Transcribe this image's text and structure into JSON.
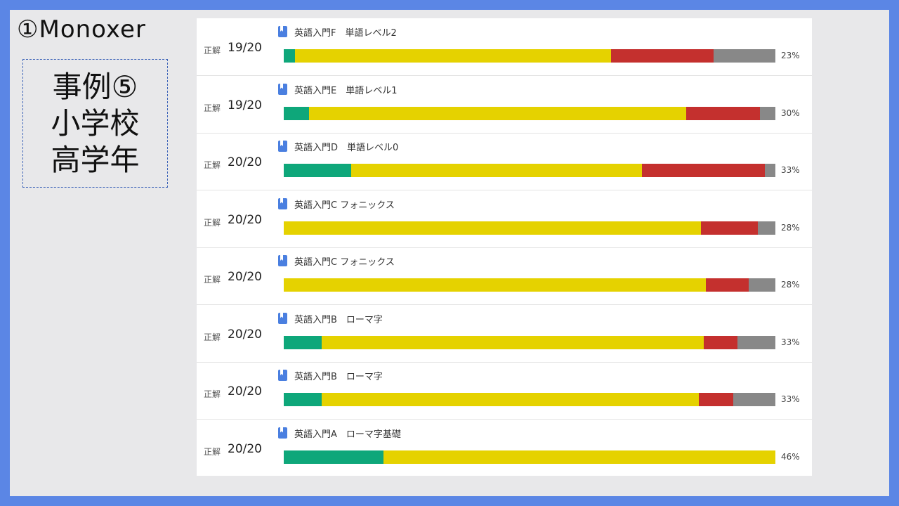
{
  "slide": {
    "title": "①Monoxer",
    "caption_lines": [
      "事例⑤",
      "小学校",
      "高学年"
    ]
  },
  "colors": {
    "frame": "#5b86e5",
    "correct_green": "#0ea77a",
    "yellow": "#e5d200",
    "red": "#c4302e",
    "gray": "#888888",
    "book_icon": "#4a7fe0"
  },
  "rows": [
    {
      "score_label": "正解",
      "score": "19/20",
      "icon": "book-icon",
      "title": "英語入門F　単語レベル2",
      "percent": "23%",
      "segments": {
        "green": 2.3,
        "yellow": 64.3,
        "red": 20.9,
        "gray": 12.5
      }
    },
    {
      "score_label": "正解",
      "score": "19/20",
      "icon": "book-icon",
      "title": "英語入門E　単語レベル1",
      "percent": "30%",
      "segments": {
        "green": 5.1,
        "yellow": 76.8,
        "red": 14.9,
        "gray": 3.2
      }
    },
    {
      "score_label": "正解",
      "score": "20/20",
      "icon": "book-icon",
      "title": "英語入門D　単語レベル0",
      "percent": "33%",
      "segments": {
        "green": 13.7,
        "yellow": 59.1,
        "red": 25.0,
        "gray": 2.2
      }
    },
    {
      "score_label": "正解",
      "score": "20/20",
      "icon": "book-icon",
      "title": "英語入門C フォニックス",
      "percent": "28%",
      "segments": {
        "green": 0,
        "yellow": 84.8,
        "red": 11.7,
        "gray": 3.5
      }
    },
    {
      "score_label": "正解",
      "score": "20/20",
      "icon": "book-icon",
      "title": "英語入門C フォニックス",
      "percent": "28%",
      "segments": {
        "green": 0,
        "yellow": 85.8,
        "red": 8.8,
        "gray": 5.4
      }
    },
    {
      "score_label": "正解",
      "score": "20/20",
      "icon": "book-icon",
      "title": "英語入門B　ローマ字",
      "percent": "33%",
      "segments": {
        "green": 7.7,
        "yellow": 77.7,
        "red": 6.9,
        "gray": 7.7
      }
    },
    {
      "score_label": "正解",
      "score": "20/20",
      "icon": "book-icon",
      "title": "英語入門B　ローマ字",
      "percent": "33%",
      "segments": {
        "green": 7.7,
        "yellow": 76.8,
        "red": 6.9,
        "gray": 8.6
      }
    },
    {
      "score_label": "正解",
      "score": "20/20",
      "icon": "book-icon",
      "title": "英語入門A　ローマ字基礎",
      "percent": "46%",
      "segments": {
        "green": 20.3,
        "yellow": 79.7,
        "red": 0,
        "gray": 0
      }
    }
  ]
}
